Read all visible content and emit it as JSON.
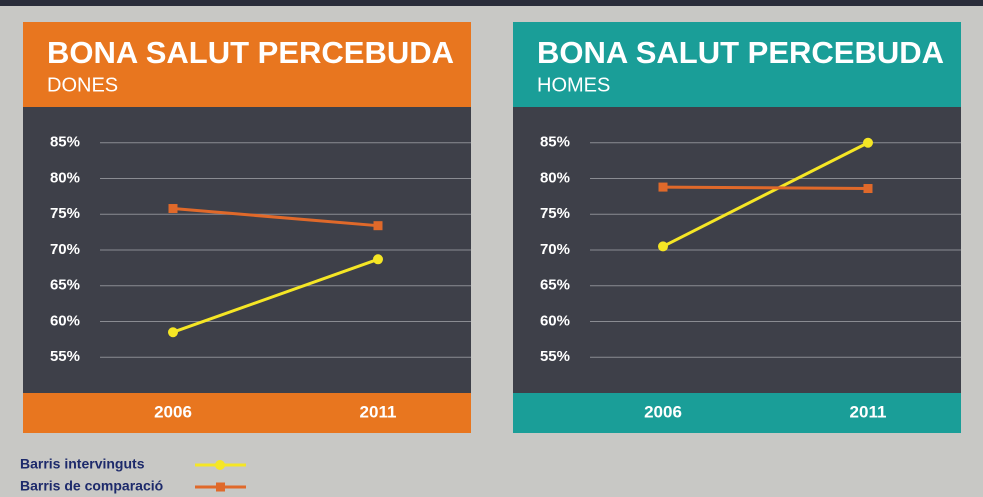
{
  "chart_data": [
    {
      "type": "line",
      "title": "BONA SALUT PERCEBUDA",
      "subtitle": "DONES",
      "header_color": "#e8761f",
      "categories": [
        "2006",
        "2011"
      ],
      "series": [
        {
          "name": "Barris intervinguts",
          "color": "#f5e625",
          "marker": "circle",
          "values": [
            58.5,
            68.7
          ]
        },
        {
          "name": "Barris de comparació",
          "color": "#e0692a",
          "marker": "square",
          "values": [
            75.8,
            73.4
          ]
        }
      ],
      "ylim": [
        50,
        90
      ],
      "yticks": [
        {
          "value": 55,
          "label": "55%"
        },
        {
          "value": 60,
          "label": "60%"
        },
        {
          "value": 65,
          "label": "65%"
        },
        {
          "value": 70,
          "label": "70%"
        },
        {
          "value": 75,
          "label": "75%"
        },
        {
          "value": 80,
          "label": "80%"
        },
        {
          "value": 85,
          "label": "85%"
        }
      ],
      "grid": true
    },
    {
      "type": "line",
      "title": "BONA SALUT PERCEBUDA",
      "subtitle": "HOMES",
      "header_color": "#1a9e98",
      "categories": [
        "2006",
        "2011"
      ],
      "series": [
        {
          "color": "#f5e625",
          "marker": "circle",
          "values": [
            70.5,
            85
          ]
        },
        {
          "color": "#e0692a",
          "marker": "square",
          "values": [
            78.8,
            78.6
          ]
        }
      ],
      "ylim": [
        50,
        90
      ],
      "yticks": [
        {
          "value": 55,
          "label": "55%"
        },
        {
          "value": 60,
          "label": "60%"
        },
        {
          "value": 65,
          "label": "65%"
        },
        {
          "value": 70,
          "label": "70%"
        },
        {
          "value": 75,
          "label": "75%"
        },
        {
          "value": 80,
          "label": "80%"
        },
        {
          "value": 85,
          "label": "85%"
        }
      ],
      "grid": true
    }
  ]
}
